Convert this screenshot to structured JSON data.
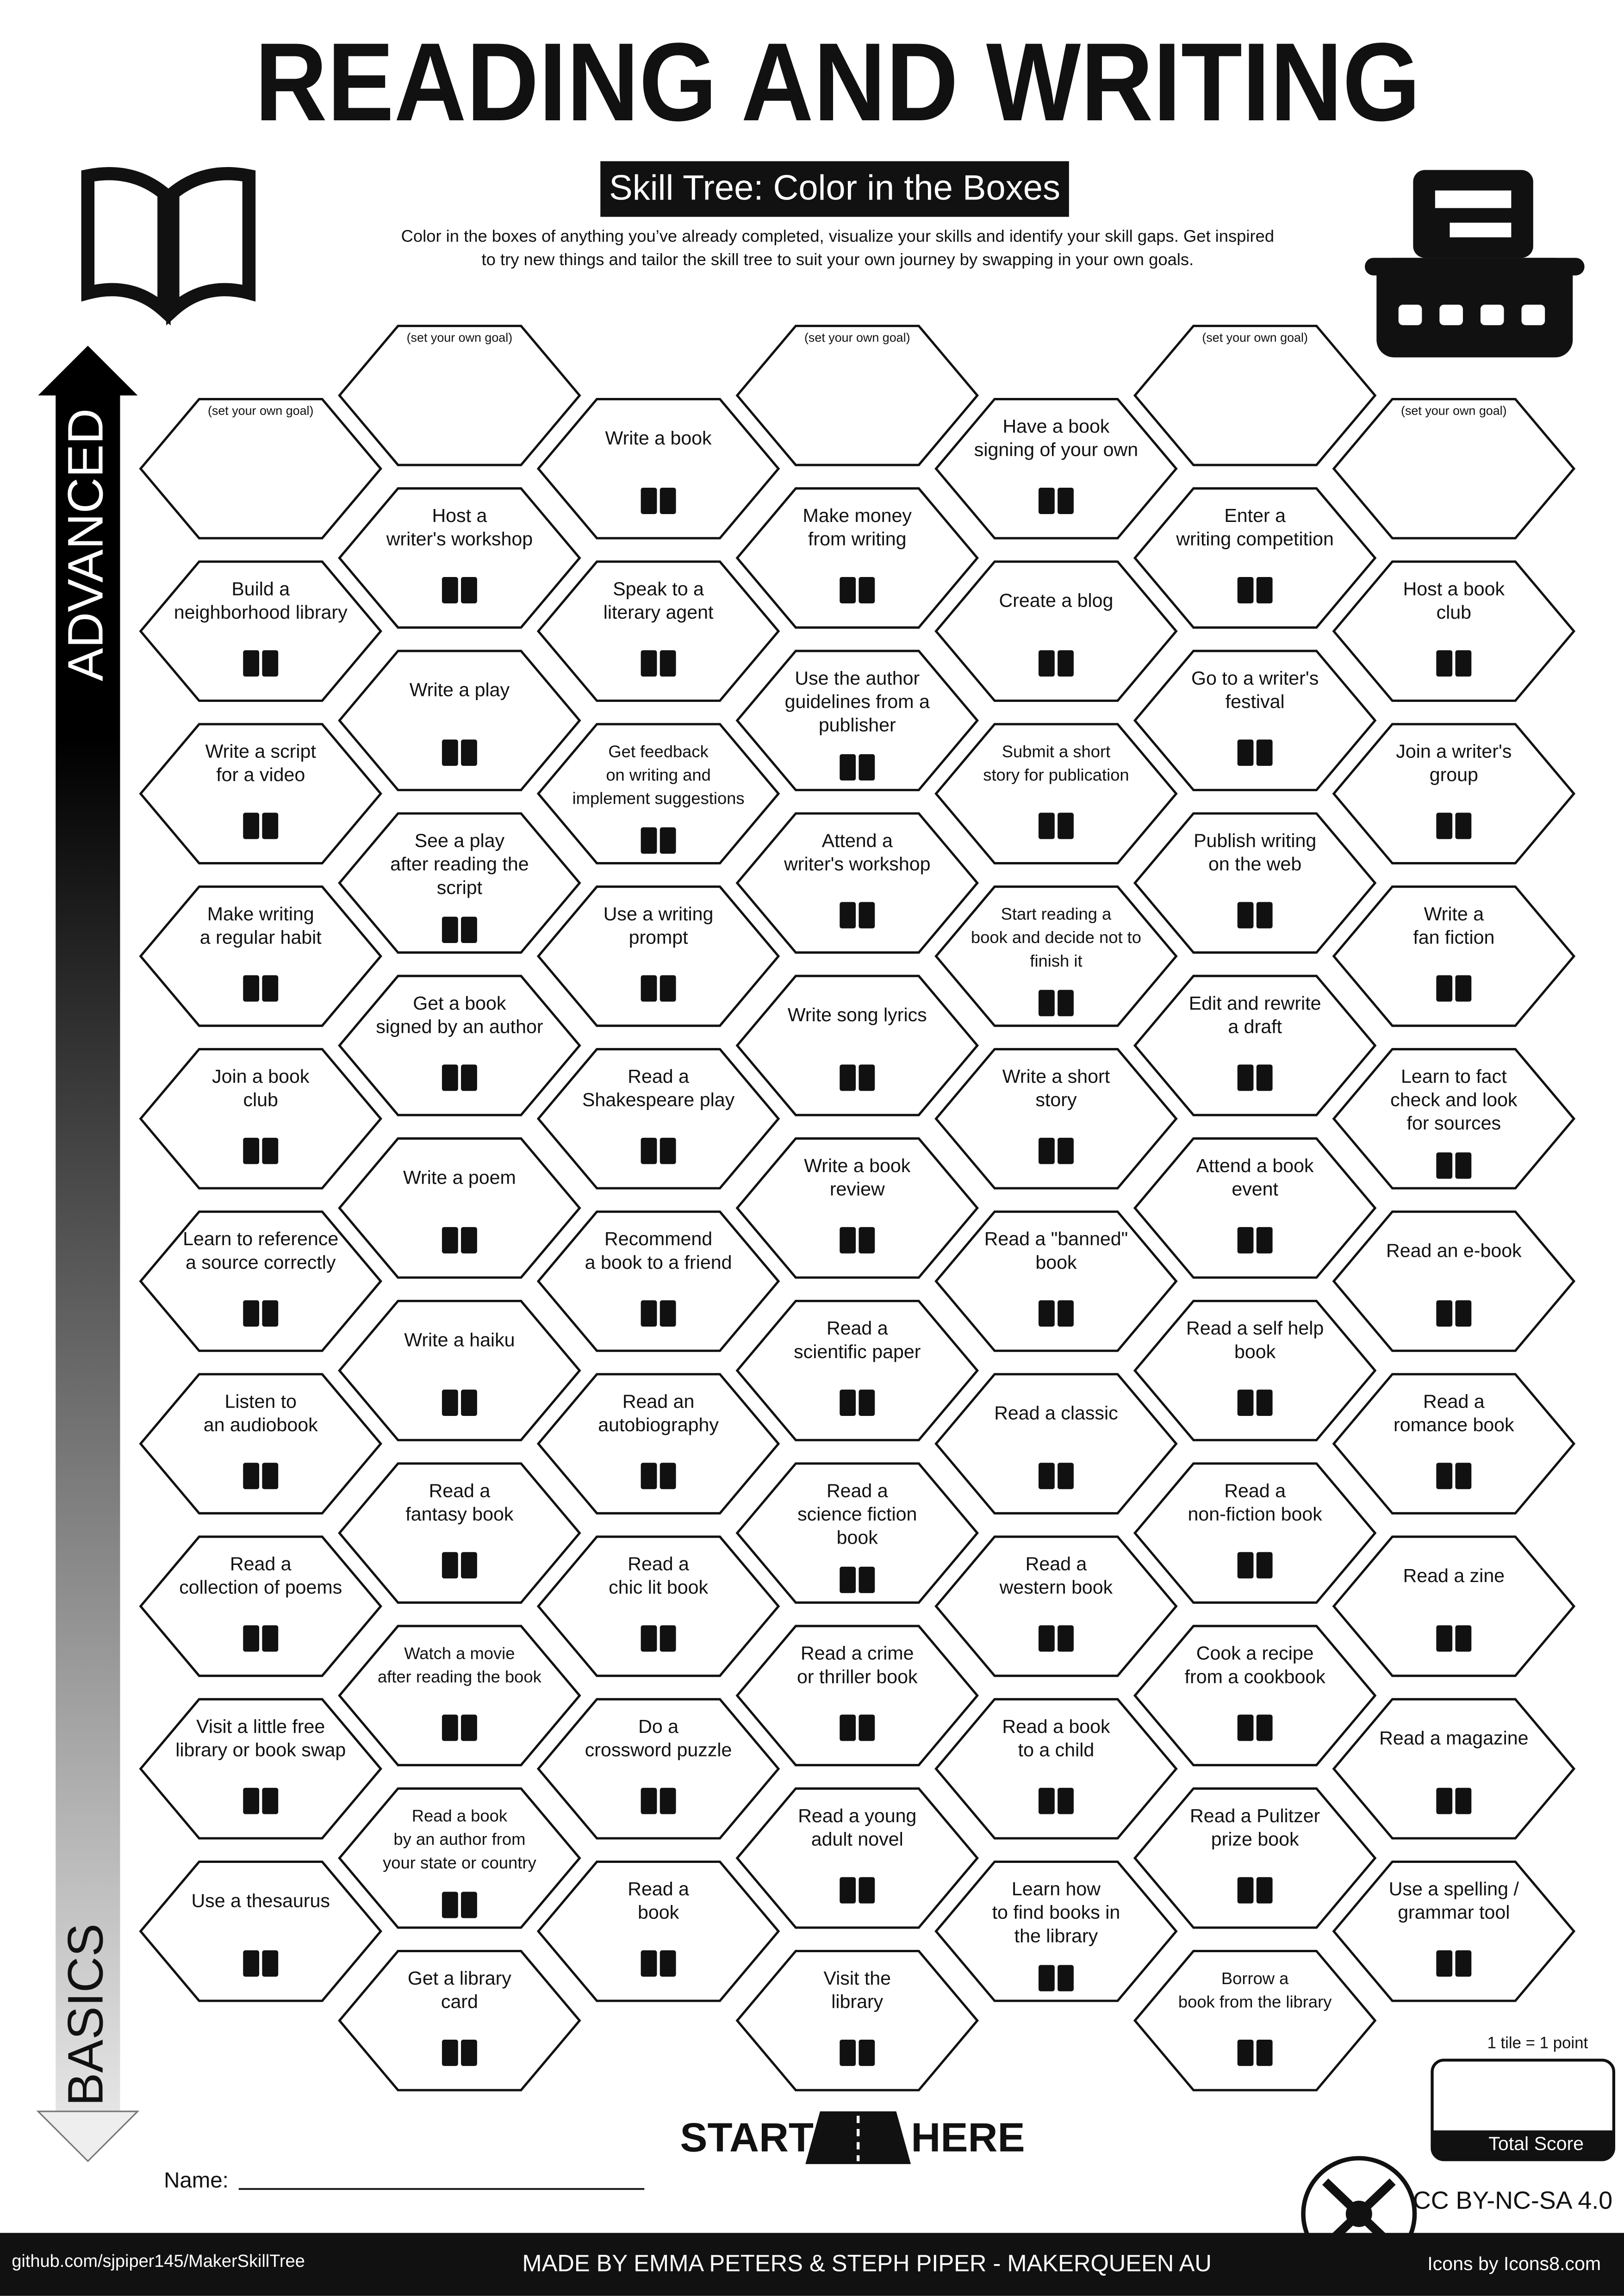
{
  "header": {
    "title": "READING AND WRITING",
    "subtitle": "Skill Tree: Color in the Boxes",
    "description": [
      "Color in the boxes of anything you’ve already completed, visualize your skills and identify your skill gaps.  Get inspired",
      "to try new things and tailor the skill tree to suit your own journey by swapping in your own goals."
    ]
  },
  "axis": {
    "top": "ADVANCED",
    "bottom": "BASICS"
  },
  "columns": [
    {
      "tiles": [
        {
          "note": "(set your own goal)"
        },
        {
          "lines": [
            "Build a",
            "neighborhood library"
          ]
        },
        {
          "lines": [
            "Write a script",
            "for a video"
          ]
        },
        {
          "lines": [
            "Make writing",
            "a regular habit"
          ]
        },
        {
          "lines": [
            "Join a book",
            "club"
          ]
        },
        {
          "lines": [
            "Learn to reference",
            "a source correctly"
          ]
        },
        {
          "lines": [
            "Listen to",
            "an audiobook"
          ]
        },
        {
          "lines": [
            "Read a",
            "collection of poems"
          ]
        },
        {
          "lines": [
            "Visit a little free",
            "library or book swap"
          ]
        },
        {
          "lines": [
            "Use a thesaurus"
          ]
        }
      ]
    },
    {
      "tiles": [
        {
          "note": "(set your own goal)"
        },
        {
          "lines": [
            "Host a",
            "writer's workshop"
          ]
        },
        {
          "lines": [
            "Write a play"
          ]
        },
        {
          "lines": [
            "See a play",
            "after reading the",
            "script"
          ]
        },
        {
          "lines": [
            "Get a book",
            "signed by an author"
          ]
        },
        {
          "lines": [
            "Write a poem"
          ]
        },
        {
          "lines": [
            "Write a haiku"
          ]
        },
        {
          "lines": [
            "Read a",
            "fantasy book"
          ]
        },
        {
          "lines": [
            "Watch a movie",
            "after reading the book"
          ]
        },
        {
          "lines": [
            "Read a book",
            "by an author from",
            "your state or country"
          ]
        },
        {
          "lines": [
            "Get a library",
            "card"
          ]
        }
      ]
    },
    {
      "tiles": [
        {
          "lines": [
            "Write a book"
          ]
        },
        {
          "lines": [
            "Speak to a",
            "literary agent"
          ]
        },
        {
          "lines": [
            "Get feedback",
            "on writing and",
            "implement suggestions"
          ]
        },
        {
          "lines": [
            "Use a writing",
            "prompt"
          ]
        },
        {
          "lines": [
            "Read a",
            "Shakespeare play"
          ]
        },
        {
          "lines": [
            "Recommend",
            "a book to a friend"
          ]
        },
        {
          "lines": [
            "Read an",
            "autobiography"
          ]
        },
        {
          "lines": [
            "Read a",
            "chic lit book"
          ]
        },
        {
          "lines": [
            "Do a",
            "crossword puzzle"
          ]
        },
        {
          "lines": [
            "Read a",
            "book"
          ]
        }
      ]
    },
    {
      "tiles": [
        {
          "note": "(set your own goal)"
        },
        {
          "lines": [
            "Make money",
            "from writing"
          ]
        },
        {
          "lines": [
            "Use the author",
            "guidelines from a",
            "publisher"
          ]
        },
        {
          "lines": [
            "Attend a",
            "writer's workshop"
          ]
        },
        {
          "lines": [
            "Write song lyrics"
          ]
        },
        {
          "lines": [
            "Write a book",
            "review"
          ]
        },
        {
          "lines": [
            "Read a",
            "scientific paper"
          ]
        },
        {
          "lines": [
            "Read a",
            "science fiction",
            "book"
          ]
        },
        {
          "lines": [
            "Read a crime",
            "or thriller book"
          ]
        },
        {
          "lines": [
            "Read a young",
            "adult novel"
          ]
        },
        {
          "lines": [
            "Visit the",
            "library"
          ]
        }
      ]
    },
    {
      "tiles": [
        {
          "lines": [
            "Have a book",
            "signing of your own"
          ]
        },
        {
          "lines": [
            "Create a blog"
          ]
        },
        {
          "lines": [
            "Submit a short",
            "story for publication"
          ]
        },
        {
          "lines": [
            "Start reading a",
            "book and decide not to",
            "finish it"
          ]
        },
        {
          "lines": [
            "Write a short",
            "story"
          ]
        },
        {
          "lines": [
            "Read a \"banned\"",
            "book"
          ]
        },
        {
          "lines": [
            "Read a classic"
          ]
        },
        {
          "lines": [
            "Read a",
            "western book"
          ]
        },
        {
          "lines": [
            "Read a book",
            "to a child"
          ]
        },
        {
          "lines": [
            "Learn how",
            "to find books in",
            "the library"
          ]
        }
      ]
    },
    {
      "tiles": [
        {
          "note": "(set your own goal)"
        },
        {
          "lines": [
            "Enter a",
            "writing competition"
          ]
        },
        {
          "lines": [
            "Go to a writer's",
            "festival"
          ]
        },
        {
          "lines": [
            "Publish writing",
            "on the web"
          ]
        },
        {
          "lines": [
            "Edit and rewrite",
            "a draft"
          ]
        },
        {
          "lines": [
            "Attend a book",
            "event"
          ]
        },
        {
          "lines": [
            "Read a self help",
            "book"
          ]
        },
        {
          "lines": [
            "Read a",
            "non-fiction book"
          ]
        },
        {
          "lines": [
            "Cook a recipe",
            "from a cookbook"
          ]
        },
        {
          "lines": [
            "Read a Pulitzer",
            "prize book"
          ]
        },
        {
          "lines": [
            "Borrow a",
            "book from the library"
          ]
        }
      ]
    },
    {
      "tiles": [
        {
          "note": "(set your own goal)"
        },
        {
          "lines": [
            "Host a book",
            "club"
          ]
        },
        {
          "lines": [
            "Join a writer's",
            "group"
          ]
        },
        {
          "lines": [
            "Write a",
            "fan fiction"
          ]
        },
        {
          "lines": [
            "Learn to fact",
            "check and look",
            "for sources"
          ]
        },
        {
          "lines": [
            "Read an e-book"
          ]
        },
        {
          "lines": [
            "Read a",
            "romance book"
          ]
        },
        {
          "lines": [
            "Read a zine"
          ]
        },
        {
          "lines": [
            "Read a magazine"
          ]
        },
        {
          "lines": [
            "Use a spelling /",
            "grammar tool"
          ]
        }
      ]
    }
  ],
  "start": {
    "left": "START",
    "right": "HERE"
  },
  "name_label": "Name:",
  "score": {
    "rule": "1 tile = 1 point",
    "label": "Total Score"
  },
  "license": "CC BY-NC-SA 4.0",
  "footer": {
    "left": "github.com/sjpiper145/MakerSkillTree",
    "center": "MADE BY EMMA PETERS & STEPH PIPER  -  MAKERQUEEN AU",
    "right": "Icons by Icons8.com"
  }
}
